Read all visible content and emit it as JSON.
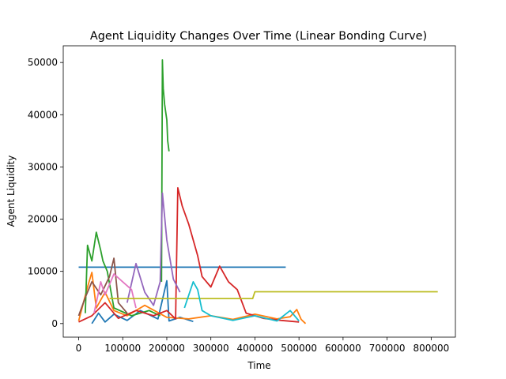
{
  "chart_data": {
    "type": "line",
    "title": "Agent Liquidity Changes Over Time (Linear Bonding Curve)",
    "xlabel": "Time",
    "ylabel": "Agent Liquidity",
    "xlim": [
      -35000,
      855000
    ],
    "ylim": [
      -2600,
      53200
    ],
    "xticks": [
      0,
      100000,
      200000,
      300000,
      400000,
      500000,
      600000,
      700000,
      800000
    ],
    "yticks": [
      0,
      10000,
      20000,
      30000,
      40000,
      50000
    ],
    "grid": false,
    "legend": "none",
    "series": [
      {
        "color": "#1f77b4",
        "points": [
          [
            0,
            10800
          ],
          [
            200000,
            10800
          ],
          [
            470000,
            10800
          ]
        ]
      },
      {
        "color": "#1f77b4",
        "points": [
          [
            30000,
            0
          ],
          [
            45000,
            2000
          ],
          [
            60000,
            300
          ],
          [
            80000,
            1800
          ],
          [
            110000,
            600
          ],
          [
            140000,
            2500
          ],
          [
            180000,
            900
          ],
          [
            200000,
            8200
          ],
          [
            205000,
            500
          ],
          [
            230000,
            1200
          ],
          [
            260000,
            400
          ]
        ]
      },
      {
        "color": "#ff7f0e",
        "points": [
          [
            0,
            500
          ],
          [
            20000,
            7000
          ],
          [
            30000,
            9800
          ],
          [
            40000,
            3000
          ],
          [
            60000,
            6000
          ],
          [
            80000,
            2500
          ],
          [
            110000,
            1500
          ],
          [
            150000,
            3500
          ],
          [
            200000,
            1200
          ],
          [
            250000,
            900
          ],
          [
            300000,
            1500
          ],
          [
            350000,
            800
          ],
          [
            400000,
            1800
          ],
          [
            450000,
            900
          ],
          [
            480000,
            1300
          ],
          [
            495000,
            2700
          ],
          [
            505000,
            800
          ],
          [
            515000,
            0
          ]
        ]
      },
      {
        "color": "#2ca02c",
        "points": [
          [
            15000,
            2000
          ],
          [
            20000,
            15000
          ],
          [
            30000,
            12000
          ],
          [
            40000,
            17500
          ],
          [
            50000,
            14000
          ],
          [
            55000,
            12000
          ],
          [
            65000,
            10000
          ],
          [
            80000,
            3000
          ],
          [
            120000,
            1500
          ],
          [
            160000,
            2500
          ],
          [
            185000,
            1500
          ]
        ]
      },
      {
        "color": "#2ca02c",
        "points": [
          [
            188000,
            8000
          ],
          [
            190000,
            50500
          ],
          [
            192000,
            45000
          ],
          [
            195000,
            42000
          ],
          [
            200000,
            39000
          ],
          [
            202000,
            35000
          ],
          [
            205000,
            33000
          ]
        ]
      },
      {
        "color": "#d62728",
        "points": [
          [
            0,
            300
          ],
          [
            30000,
            1500
          ],
          [
            60000,
            4000
          ],
          [
            90000,
            1000
          ],
          [
            130000,
            2500
          ],
          [
            170000,
            1500
          ],
          [
            200000,
            2500
          ],
          [
            220000,
            900
          ],
          [
            225000,
            26000
          ],
          [
            235000,
            22500
          ],
          [
            250000,
            19000
          ],
          [
            270000,
            13000
          ],
          [
            280000,
            9000
          ],
          [
            300000,
            7000
          ],
          [
            320000,
            11000
          ],
          [
            340000,
            8000
          ],
          [
            360000,
            6500
          ],
          [
            380000,
            2000
          ],
          [
            420000,
            1000
          ],
          [
            460000,
            600
          ],
          [
            500000,
            300
          ]
        ]
      },
      {
        "color": "#9467bd",
        "points": [
          [
            110000,
            4000
          ],
          [
            130000,
            11500
          ],
          [
            150000,
            6000
          ],
          [
            170000,
            3500
          ],
          [
            185000,
            8000
          ],
          [
            190000,
            25000
          ],
          [
            200000,
            16000
          ],
          [
            215000,
            8500
          ],
          [
            230000,
            6000
          ]
        ]
      },
      {
        "color": "#8c564b",
        "points": [
          [
            0,
            1500
          ],
          [
            15000,
            5000
          ],
          [
            30000,
            8000
          ],
          [
            50000,
            5500
          ],
          [
            70000,
            9000
          ],
          [
            80000,
            12500
          ],
          [
            90000,
            4000
          ],
          [
            110000,
            2000
          ]
        ]
      },
      {
        "color": "#e377c2",
        "points": [
          [
            35000,
            2000
          ],
          [
            50000,
            8000
          ],
          [
            60000,
            5500
          ],
          [
            80000,
            9500
          ],
          [
            100000,
            8000
          ],
          [
            120000,
            6500
          ],
          [
            130000,
            3000
          ]
        ]
      },
      {
        "color": "#bcbd22",
        "points": [
          [
            70000,
            4800
          ],
          [
            200000,
            4800
          ],
          [
            315000,
            4800
          ],
          [
            395000,
            4800
          ],
          [
            400000,
            6100
          ],
          [
            815000,
            6100
          ]
        ]
      },
      {
        "color": "#17becf",
        "points": [
          [
            240000,
            3000
          ],
          [
            260000,
            8000
          ],
          [
            270000,
            6500
          ],
          [
            280000,
            2500
          ],
          [
            300000,
            1500
          ],
          [
            350000,
            600
          ],
          [
            400000,
            1500
          ],
          [
            450000,
            500
          ],
          [
            480000,
            2500
          ],
          [
            500000,
            500
          ]
        ]
      }
    ]
  }
}
